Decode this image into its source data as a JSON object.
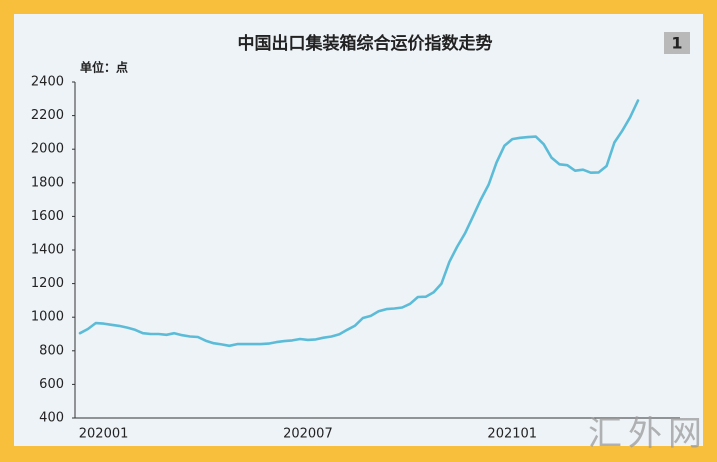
{
  "chart_data": {
    "type": "line",
    "title": "中国出口集装箱综合运价指数走势",
    "badge": "1",
    "unit_label": "单位：点",
    "watermark": "汇外网",
    "categories": [
      null,
      null,
      null,
      "202001",
      null,
      null,
      null,
      null,
      null,
      null,
      null,
      null,
      null,
      null,
      null,
      null,
      null,
      null,
      null,
      null,
      null,
      null,
      null,
      null,
      null,
      null,
      null,
      null,
      null,
      "202007",
      null,
      null,
      null,
      null,
      null,
      null,
      null,
      null,
      null,
      null,
      null,
      null,
      null,
      null,
      null,
      null,
      null,
      null,
      null,
      null,
      null,
      null,
      null,
      null,
      null,
      "202101",
      null,
      null,
      null,
      null,
      null,
      null,
      null,
      null,
      null,
      null,
      null,
      null,
      null,
      null,
      null,
      null
    ],
    "values": [
      905,
      930,
      965,
      962,
      955,
      948,
      938,
      925,
      905,
      900,
      900,
      895,
      905,
      893,
      885,
      882,
      860,
      845,
      838,
      830,
      840,
      840,
      840,
      840,
      843,
      852,
      858,
      862,
      870,
      865,
      868,
      878,
      885,
      898,
      925,
      950,
      995,
      1008,
      1035,
      1048,
      1052,
      1058,
      1080,
      1120,
      1122,
      1148,
      1200,
      1330,
      1420,
      1500,
      1600,
      1700,
      1790,
      1920,
      2020,
      2060,
      2068,
      2072,
      2075,
      2030,
      1950,
      1910,
      1905,
      1872,
      1878,
      1860,
      1862,
      1900,
      2040,
      2110,
      2190,
      2290
    ],
    "color": "#5cbcd8",
    "ylim": [
      400,
      2400
    ],
    "yticks": [
      400,
      600,
      800,
      1000,
      1200,
      1400,
      1600,
      1800,
      2000,
      2200,
      2400
    ],
    "grid": false
  }
}
